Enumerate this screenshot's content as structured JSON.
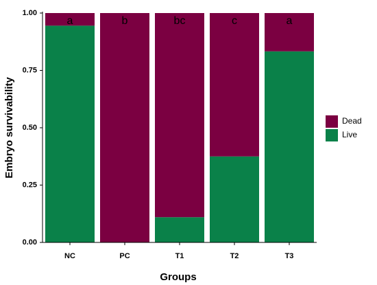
{
  "chart_data": {
    "type": "stacked_bar",
    "x_label": "Groups",
    "y_label": "Embryo survivability",
    "categories": [
      "NC",
      "PC",
      "T1",
      "T2",
      "T3"
    ],
    "series": [
      {
        "name": "Live",
        "color": "#0a8149",
        "values": [
          0.945,
          0,
          0.11,
          0.375,
          0.833
        ]
      },
      {
        "name": "Dead",
        "color": "#7b0041",
        "values": [
          0.055,
          1,
          0.89,
          0.625,
          0.167
        ]
      }
    ],
    "annotations": [
      "a",
      "b",
      "bc",
      "c",
      "a"
    ],
    "ylim": [
      0,
      1
    ],
    "yticks": [
      {
        "value": 0,
        "label": "0.00"
      },
      0.25,
      {
        "value": 0.5,
        "label": "0.50"
      },
      0.75,
      {
        "value": 1,
        "label": "1.00"
      }
    ],
    "grid": false,
    "legend": "right"
  }
}
